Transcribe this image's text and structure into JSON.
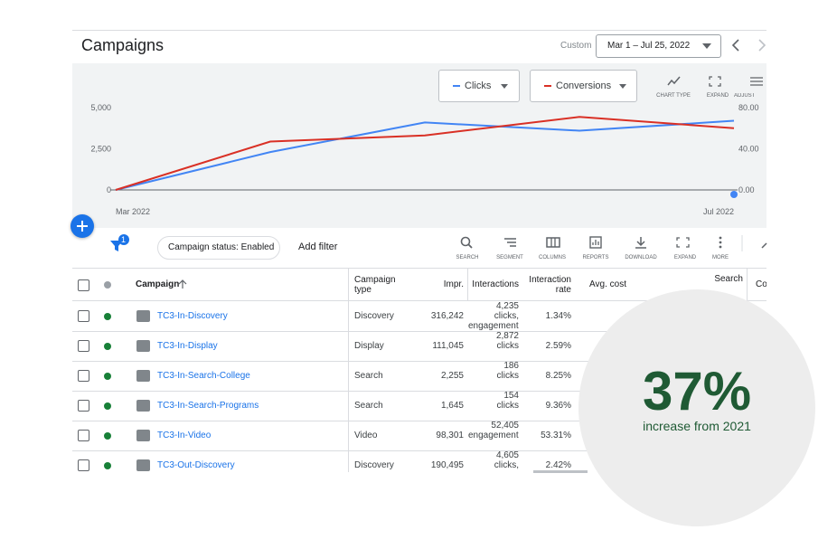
{
  "header": {
    "title": "Campaigns",
    "date_mode": "Custom",
    "date_range": "Mar 1 – Jul 25, 2022"
  },
  "chart_controls": [
    "CHART TYPE",
    "EXPAND",
    "ADJUST"
  ],
  "chart_data": {
    "type": "line",
    "categories": [
      "Mar 2022",
      null,
      null,
      null,
      "Jul 2022"
    ],
    "series": [
      {
        "name": "Clicks",
        "color": "#4285f4",
        "values": [
          0,
          2300,
          4100,
          3600,
          4200
        ]
      },
      {
        "name": "Conversions",
        "color": "#d93025",
        "axis": "y2",
        "values": [
          0,
          47,
          53,
          71,
          60
        ]
      }
    ],
    "ylim": [
      0,
      5000
    ],
    "yticks": [
      0,
      {
        "value": 2500,
        "label": "2,500"
      },
      {
        "value": 5000,
        "label": "5,000"
      }
    ],
    "y2lim": [
      0,
      80
    ],
    "y2ticks": [
      {
        "value": 0,
        "label": "0.00"
      },
      {
        "value": 40,
        "label": "40.00"
      },
      {
        "value": 80,
        "label": "80.00"
      }
    ],
    "grid": false
  },
  "filter_bar": {
    "filter_count": 1,
    "chip": "Campaign status: Enabled",
    "add_filter": "Add filter"
  },
  "toolbar": [
    "SEARCH",
    "SEGMENT",
    "COLUMNS",
    "REPORTS",
    "DOWNLOAD",
    "EXPAND",
    "MORE"
  ],
  "table": {
    "columns": [
      "Campaign",
      "Campaign type",
      "Impr.",
      "Interactions",
      "Interaction rate",
      "Avg. cost",
      "Search",
      "Co"
    ],
    "rows": [
      [
        "TC3-In-Discovery",
        "Discovery",
        "316,242",
        "4,235 clicks, engagements",
        "1.34%"
      ],
      [
        "TC3-In-Display",
        "Display",
        "111,045",
        "2,872 clicks",
        "2.59%"
      ],
      [
        "TC3-In-Search-College",
        "Search",
        "2,255",
        "186 clicks",
        "8.25%"
      ],
      [
        "TC3-In-Search-Programs",
        "Search",
        "1,645",
        "154 clicks",
        "9.36%"
      ],
      [
        "TC3-In-Video",
        "Video",
        "98,301",
        "52,405 engagements",
        "53.31%"
      ],
      [
        "TC3-Out-Discovery",
        "Discovery",
        "190,495",
        "4,605 clicks,",
        "2.42%"
      ]
    ]
  },
  "callout": {
    "value": "37%",
    "caption": "increase from 2021"
  }
}
